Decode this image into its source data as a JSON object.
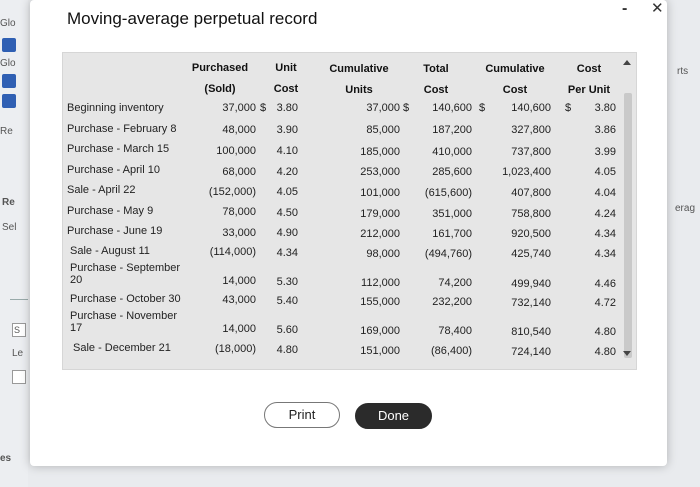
{
  "background": {
    "fragments": [
      "Glo",
      "Glo",
      "Re",
      "Re",
      "Sel",
      "S",
      "Le",
      "es",
      "rts",
      "erag"
    ]
  },
  "dialog": {
    "title": "Moving-average perpetual record",
    "minimize": "-",
    "close": "✕"
  },
  "table": {
    "headers": {
      "purchased_line1": "Purchased",
      "purchased_line2": "(Sold)",
      "unit_cost_line1": "Unit",
      "unit_cost_line2": "Cost",
      "cum_units_line1": "Cumulative",
      "cum_units_line2": "Units",
      "total_cost_line1": "Total",
      "total_cost_line2": "Cost",
      "cum_cost_line1": "Cumulative",
      "cum_cost_line2": "Cost",
      "cpu_line1": "Cost",
      "cpu_line2": "Per Unit"
    },
    "currency_symbol": "$",
    "rows": [
      {
        "label": "Beginning inventory",
        "purchased": "37,000",
        "unit_cost": "3.80",
        "cum_units": "37,000",
        "total_cost": "140,600",
        "cum_cost": "140,600",
        "cpu": "3.80"
      },
      {
        "label": "Purchase - February 8",
        "purchased": "48,000",
        "unit_cost": "3.90",
        "cum_units": "85,000",
        "total_cost": "187,200",
        "cum_cost": "327,800",
        "cpu": "3.86"
      },
      {
        "label": "Purchase - March 15",
        "purchased": "100,000",
        "unit_cost": "4.10",
        "cum_units": "185,000",
        "total_cost": "410,000",
        "cum_cost": "737,800",
        "cpu": "3.99"
      },
      {
        "label": "Purchase - April 10",
        "purchased": "68,000",
        "unit_cost": "4.20",
        "cum_units": "253,000",
        "total_cost": "285,600",
        "cum_cost": "1,023,400",
        "cpu": "4.05"
      },
      {
        "label": "Sale - April 22",
        "purchased": "(152,000)",
        "unit_cost": "4.05",
        "cum_units": "101,000",
        "total_cost": "(615,600)",
        "cum_cost": "407,800",
        "cpu": "4.04"
      },
      {
        "label": "Purchase - May 9",
        "purchased": "78,000",
        "unit_cost": "4.50",
        "cum_units": "179,000",
        "total_cost": "351,000",
        "cum_cost": "758,800",
        "cpu": "4.24"
      },
      {
        "label": "Purchase - June 19",
        "purchased": "33,000",
        "unit_cost": "4.90",
        "cum_units": "212,000",
        "total_cost": "161,700",
        "cum_cost": "920,500",
        "cpu": "4.34"
      },
      {
        "label": "Sale - August 11",
        "purchased": "(114,000)",
        "unit_cost": "4.34",
        "cum_units": "98,000",
        "total_cost": "(494,760)",
        "cum_cost": "425,740",
        "cpu": "4.34"
      },
      {
        "label": "Purchase - September 20",
        "purchased": "14,000",
        "unit_cost": "5.30",
        "cum_units": "112,000",
        "total_cost": "74,200",
        "cum_cost": "499,940",
        "cpu": "4.46"
      },
      {
        "label": "Purchase - October 30",
        "purchased": "43,000",
        "unit_cost": "5.40",
        "cum_units": "155,000",
        "total_cost": "232,200",
        "cum_cost": "732,140",
        "cpu": "4.72"
      },
      {
        "label": "Purchase - November 17",
        "purchased": "14,000",
        "unit_cost": "5.60",
        "cum_units": "169,000",
        "total_cost": "78,400",
        "cum_cost": "810,540",
        "cpu": "4.80"
      },
      {
        "label": "Sale - December 21",
        "purchased": "(18,000)",
        "unit_cost": "4.80",
        "cum_units": "151,000",
        "total_cost": "(86,400)",
        "cum_cost": "724,140",
        "cpu": "4.80"
      }
    ]
  },
  "buttons": {
    "print": "Print",
    "done": "Done"
  }
}
